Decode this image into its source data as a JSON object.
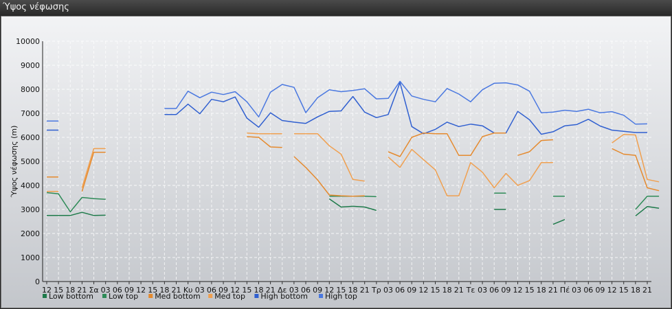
{
  "window": {
    "title": "Ύψος νέφωσης"
  },
  "chart_data": {
    "type": "line",
    "ylabel": "Ύψος νέφωσης (m)",
    "ylim": [
      0,
      10000
    ],
    "yticks": [
      0,
      1000,
      2000,
      3000,
      4000,
      5000,
      6000,
      7000,
      8000,
      9000,
      10000
    ],
    "grid": true,
    "legend_position": "bottom-left",
    "x_labels": [
      "12",
      "15",
      "18",
      "21",
      "Σα",
      "03",
      "06",
      "09",
      "12",
      "15",
      "18",
      "21",
      "Κυ",
      "03",
      "06",
      "09",
      "12",
      "15",
      "18",
      "21",
      "Δε",
      "03",
      "06",
      "09",
      "12",
      "15",
      "18",
      "21",
      "Τρ",
      "03",
      "06",
      "09",
      "12",
      "15",
      "18",
      "21",
      "Τε",
      "03",
      "06",
      "09",
      "12",
      "15",
      "18",
      "21",
      "Πέ",
      "03",
      "06",
      "09",
      "12",
      "15",
      "18",
      "21"
    ],
    "series": [
      {
        "name": "Low bottom",
        "color": "#1e7a4a",
        "values": [
          2750,
          2750,
          2750,
          2880,
          2750,
          2760,
          null,
          null,
          null,
          null,
          null,
          null,
          null,
          null,
          null,
          null,
          null,
          null,
          null,
          null,
          null,
          null,
          null,
          null,
          null,
          null,
          null,
          null,
          null,
          null,
          null,
          null,
          null,
          null,
          null,
          null,
          null,
          null,
          null,
          null,
          null,
          null,
          null,
          null,
          null,
          null,
          null,
          null,
          null,
          null,
          null,
          null
        ]
      },
      {
        "name": "Low top",
        "color": "#2e8b57",
        "values": [
          3700,
          3650,
          2900,
          3500,
          3450,
          3420,
          null,
          null,
          null,
          null,
          null,
          null,
          null,
          null,
          null,
          null,
          null,
          null,
          null,
          null,
          null,
          null,
          null,
          null,
          null,
          null,
          null,
          null,
          null,
          null,
          null,
          null,
          null,
          null,
          null,
          null,
          null,
          null,
          null,
          null,
          null,
          null,
          null,
          null,
          null,
          null,
          null,
          null,
          null,
          null,
          null,
          null
        ]
      },
      {
        "name": "Med bottom",
        "color": "#e58a2e",
        "values": [
          4350,
          4350,
          null,
          3750,
          5380,
          5380,
          null,
          null,
          null,
          null,
          null,
          null,
          null,
          null,
          null,
          null,
          null,
          null,
          null,
          null,
          null,
          null,
          null,
          null,
          null,
          null,
          null,
          null,
          null,
          null,
          null,
          null,
          null,
          null,
          null,
          null,
          null,
          null,
          null,
          null,
          null,
          null,
          null,
          null,
          null,
          null,
          null,
          null,
          null,
          null,
          null,
          null
        ]
      },
      {
        "name": "Med top",
        "color": "#f0a050",
        "values": [
          3750,
          3750,
          null,
          3900,
          5530,
          5530,
          null,
          null,
          null,
          null,
          null,
          null,
          null,
          null,
          null,
          null,
          null,
          null,
          null,
          null,
          null,
          null,
          null,
          null,
          null,
          null,
          null,
          null,
          null,
          null,
          null,
          null,
          null,
          null,
          null,
          null,
          null,
          null,
          null,
          null,
          null,
          null,
          null,
          null,
          null,
          null,
          null,
          null,
          null,
          null,
          null,
          null
        ]
      },
      {
        "name": "High bottom",
        "color": "#2f5fd0",
        "values": [
          6300,
          6300,
          null,
          null,
          null,
          null,
          null,
          null,
          null,
          null,
          6950,
          6950,
          7380,
          6980,
          7580,
          7480,
          7680,
          6800,
          6420,
          7020,
          6700,
          6630,
          6580,
          6850,
          7080,
          7100,
          7700,
          7050,
          6820,
          6950,
          8280,
          6450,
          6150,
          6330,
          6630,
          6450,
          6550,
          6480,
          6180,
          6180,
          7080,
          6730,
          6130,
          6230,
          6480,
          6530,
          6750,
          6470,
          6300,
          6250,
          6200,
          6200
        ]
      },
      {
        "name": "High top",
        "color": "#4a78e0",
        "values": [
          6680,
          6680,
          null,
          null,
          null,
          null,
          null,
          null,
          null,
          null,
          7200,
          7200,
          7920,
          7650,
          7880,
          7780,
          7900,
          7480,
          6850,
          7880,
          8200,
          8080,
          7030,
          7650,
          7980,
          7900,
          7950,
          8020,
          7600,
          7620,
          8330,
          7720,
          7580,
          7480,
          8030,
          7800,
          7480,
          7980,
          8250,
          8270,
          8180,
          7920,
          7020,
          7050,
          7130,
          7080,
          7170,
          7020,
          7070,
          6920,
          6550,
          6560
        ]
      }
    ],
    "extra_segments": [
      {
        "series": "Low bottom",
        "values": [
          [
            24,
            3440
          ],
          [
            25,
            3100
          ],
          [
            26,
            3130
          ],
          [
            27,
            3100
          ],
          [
            28,
            2960
          ]
        ]
      },
      {
        "series": "Low top",
        "values": [
          [
            24,
            3550
          ],
          [
            25,
            3550
          ],
          [
            26,
            3550
          ],
          [
            27,
            3550
          ],
          [
            28,
            3530
          ]
        ]
      },
      {
        "series": "Low bottom",
        "values": [
          [
            43,
            2380
          ],
          [
            44,
            2580
          ]
        ]
      },
      {
        "series": "Low bottom",
        "values": [
          [
            38,
            3000
          ],
          [
            39,
            3000
          ]
        ]
      },
      {
        "series": "Low top",
        "values": [
          [
            38,
            3680
          ],
          [
            39,
            3680
          ]
        ]
      },
      {
        "series": "Low top",
        "values": [
          [
            43,
            3550
          ],
          [
            44,
            3550
          ]
        ]
      },
      {
        "series": "Low bottom",
        "values": [
          [
            50,
            2730
          ],
          [
            51,
            3120
          ],
          [
            52,
            3050
          ]
        ]
      },
      {
        "series": "Low top",
        "values": [
          [
            50,
            3000
          ],
          [
            51,
            3550
          ],
          [
            52,
            3550
          ]
        ]
      },
      {
        "series": "Med top",
        "values": [
          [
            17,
            6180
          ],
          [
            18,
            6150
          ],
          [
            19,
            6150
          ],
          [
            20,
            6150
          ]
        ]
      },
      {
        "series": "Med bottom",
        "values": [
          [
            17,
            6030
          ],
          [
            18,
            6000
          ],
          [
            19,
            5600
          ],
          [
            20,
            5580
          ]
        ]
      },
      {
        "series": "Med top",
        "values": [
          [
            21,
            6150
          ],
          [
            22,
            6150
          ],
          [
            23,
            6150
          ],
          [
            24,
            5650
          ],
          [
            25,
            5300
          ],
          [
            26,
            4250
          ],
          [
            27,
            4180
          ]
        ]
      },
      {
        "series": "Med bottom",
        "values": [
          [
            21,
            5200
          ],
          [
            22,
            4750
          ],
          [
            23,
            4230
          ],
          [
            24,
            3600
          ],
          [
            25,
            3570
          ],
          [
            26,
            3550
          ],
          [
            27,
            3570
          ]
        ]
      },
      {
        "series": "Med bottom",
        "values": [
          [
            29,
            5400
          ],
          [
            30,
            5200
          ],
          [
            31,
            6000
          ],
          [
            32,
            6180
          ],
          [
            33,
            6150
          ],
          [
            34,
            6150
          ],
          [
            35,
            5250
          ],
          [
            36,
            5250
          ],
          [
            37,
            6030
          ],
          [
            38,
            6180
          ],
          [
            39,
            6180
          ]
        ]
      },
      {
        "series": "Med top",
        "values": [
          [
            29,
            5180
          ],
          [
            30,
            4750
          ],
          [
            31,
            5500
          ],
          [
            32,
            5070
          ],
          [
            33,
            4650
          ],
          [
            34,
            3570
          ],
          [
            35,
            3570
          ],
          [
            36,
            4950
          ],
          [
            37,
            4550
          ],
          [
            38,
            3900
          ],
          [
            39,
            4500
          ],
          [
            40,
            4000
          ],
          [
            41,
            4200
          ],
          [
            42,
            4950
          ],
          [
            43,
            4950
          ]
        ]
      },
      {
        "series": "Med bottom",
        "values": [
          [
            40,
            5250
          ],
          [
            41,
            5400
          ],
          [
            42,
            5870
          ],
          [
            43,
            5900
          ]
        ]
      },
      {
        "series": "Med top",
        "values": [
          [
            48,
            5770
          ],
          [
            49,
            6120
          ],
          [
            50,
            6100
          ],
          [
            51,
            4250
          ],
          [
            52,
            4150
          ]
        ]
      },
      {
        "series": "Med bottom",
        "values": [
          [
            48,
            5530
          ],
          [
            49,
            5300
          ],
          [
            50,
            5250
          ],
          [
            51,
            3900
          ],
          [
            52,
            3780
          ]
        ]
      }
    ]
  }
}
